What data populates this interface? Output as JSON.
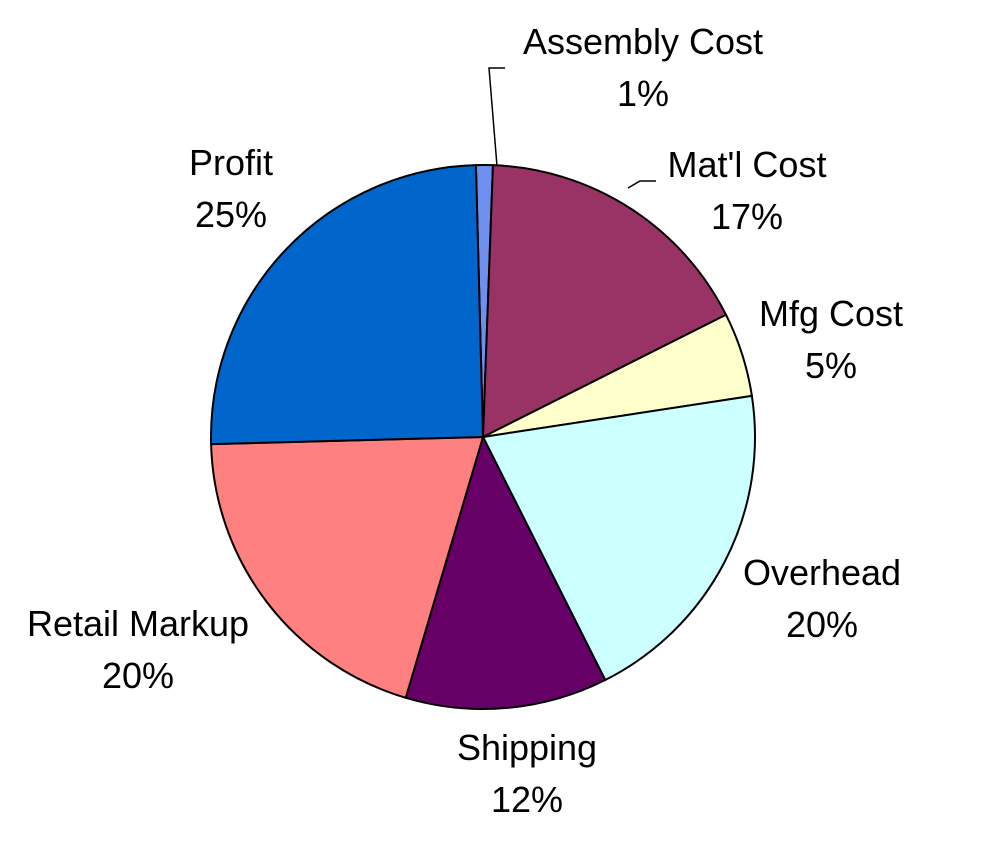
{
  "chart_data": {
    "type": "pie",
    "title": "",
    "legend": "none",
    "slices": [
      {
        "label": "Assembly Cost",
        "value": 1,
        "value_label": "1%",
        "color": "#6f8fef"
      },
      {
        "label": "Mat'l Cost",
        "value": 17,
        "value_label": "17%",
        "color": "#993366"
      },
      {
        "label": "Mfg Cost",
        "value": 5,
        "value_label": "5%",
        "color": "#ffffcc"
      },
      {
        "label": "Overhead",
        "value": 20,
        "value_label": "20%",
        "color": "#ccffff"
      },
      {
        "label": "Shipping",
        "value": 12,
        "value_label": "12%",
        "color": "#660066"
      },
      {
        "label": "Retail Markup",
        "value": 20,
        "value_label": "20%",
        "color": "#ff8080"
      },
      {
        "label": "Profit",
        "value": 25,
        "value_label": "25%",
        "color": "#0066cc"
      }
    ]
  }
}
